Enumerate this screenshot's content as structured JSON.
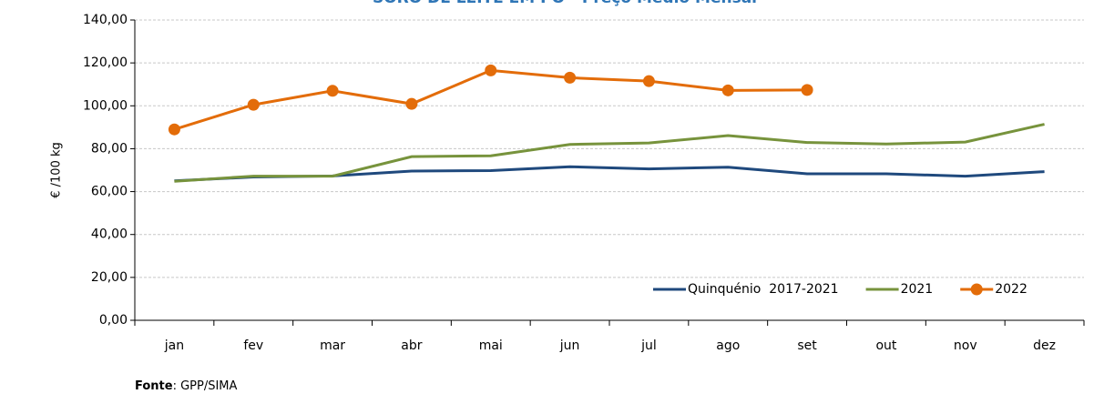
{
  "chart_data": {
    "type": "line",
    "title": "SORO DE LEITE EM PÓ - Preço Médio Mensal",
    "y_label": "€ /100 kg",
    "categories": [
      "jan",
      "fev",
      "mar",
      "abr",
      "mai",
      "jun",
      "jul",
      "ago",
      "set",
      "out",
      "nov",
      "dez"
    ],
    "series": [
      {
        "name": "Quinquénio  2017-2021",
        "color": "#1f497d",
        "marker": false,
        "values": [
          65.0,
          66.8,
          67.3,
          69.6,
          69.8,
          71.6,
          70.6,
          71.4,
          68.3,
          68.3,
          67.2,
          69.3
        ]
      },
      {
        "name": "2021",
        "color": "#77933c",
        "marker": false,
        "values": [
          64.8,
          67.2,
          67.2,
          76.3,
          76.7,
          82.0,
          82.7,
          86.1,
          82.9,
          82.2,
          83.1,
          91.4
        ]
      },
      {
        "name": "2022",
        "color": "#e36c09",
        "marker": true,
        "values": [
          89.0,
          100.5,
          107.0,
          100.9,
          116.5,
          113.1,
          111.5,
          107.2,
          107.4,
          null,
          null,
          null
        ]
      }
    ],
    "ylim": [
      0,
      140
    ],
    "yticks": [
      {
        "value": 0,
        "label": "0,00"
      },
      {
        "value": 20,
        "label": "20,00"
      },
      {
        "value": 40,
        "label": "40,00"
      },
      {
        "value": 60,
        "label": "60,00"
      },
      {
        "value": 80,
        "label": "80,00"
      },
      {
        "value": 100,
        "label": "100,00"
      },
      {
        "value": 120,
        "label": "120,00"
      },
      {
        "value": 140,
        "label": "140,00"
      }
    ],
    "grid": true,
    "legend": "bottom-right",
    "source_label": "Fonte",
    "source_text": ": GPP/SIMA"
  }
}
